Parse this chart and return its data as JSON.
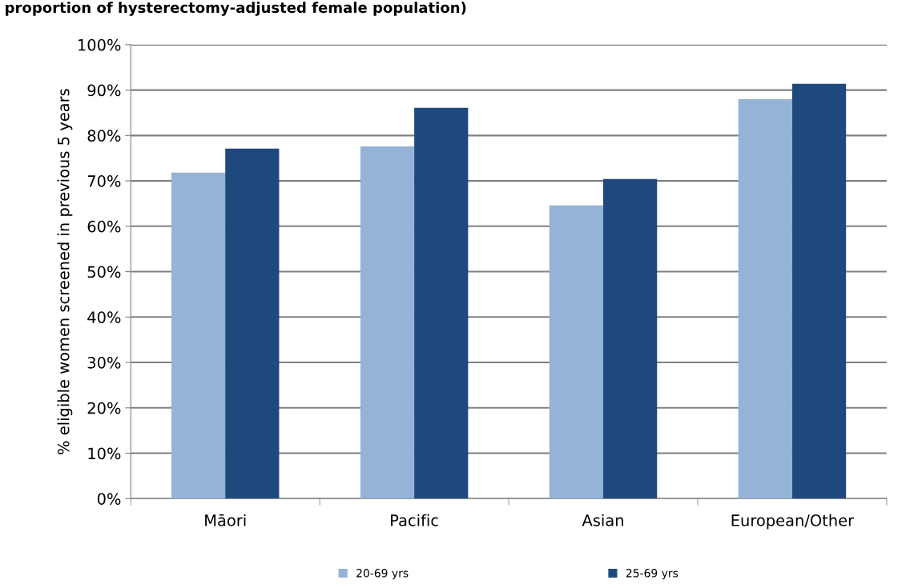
{
  "chart_data": {
    "type": "bar",
    "title": "proportion of hysterectomy-adjusted female population)",
    "ylabel": "% eligible women screened in previous 5 years",
    "categories": [
      "Māori",
      "Pacific",
      "Asian",
      "European/Other"
    ],
    "series": [
      {
        "name": "20-69 yrs",
        "color": "#95b3d7",
        "values": [
          71.8,
          77.6,
          64.6,
          88.0
        ]
      },
      {
        "name": "25-69 yrs",
        "color": "#1f497d",
        "values": [
          77.1,
          86.1,
          70.4,
          91.4
        ]
      }
    ],
    "ylim": [
      0,
      100
    ],
    "yticks": [
      {
        "value": 0,
        "label": "0%"
      },
      {
        "value": 10,
        "label": "10%"
      },
      {
        "value": 20,
        "label": "20%"
      },
      {
        "value": 30,
        "label": "30%"
      },
      {
        "value": 40,
        "label": "40%"
      },
      {
        "value": 50,
        "label": "50%"
      },
      {
        "value": 60,
        "label": "60%"
      },
      {
        "value": 70,
        "label": "70%"
      },
      {
        "value": 80,
        "label": "80%"
      },
      {
        "value": 90,
        "label": "90%"
      },
      {
        "value": 100,
        "label": "100%"
      }
    ],
    "grid": "y",
    "legend": "bottom"
  }
}
